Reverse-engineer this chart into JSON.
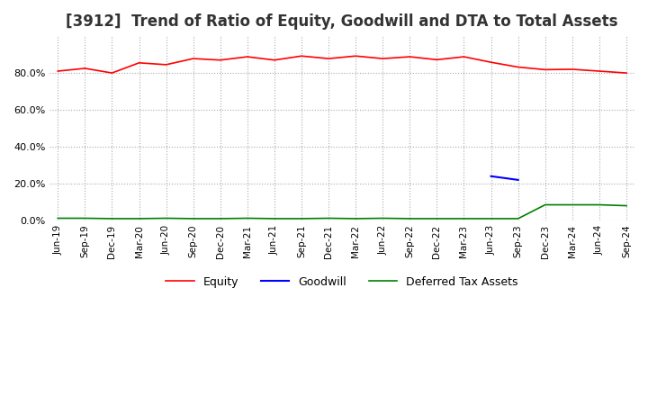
{
  "title": "[3912]  Trend of Ratio of Equity, Goodwill and DTA to Total Assets",
  "x_labels": [
    "Jun-19",
    "Sep-19",
    "Dec-19",
    "Mar-20",
    "Jun-20",
    "Sep-20",
    "Dec-20",
    "Mar-21",
    "Jun-21",
    "Sep-21",
    "Dec-21",
    "Mar-22",
    "Jun-22",
    "Sep-22",
    "Dec-22",
    "Mar-23",
    "Jun-23",
    "Sep-23",
    "Dec-23",
    "Mar-24",
    "Jun-24",
    "Sep-24"
  ],
  "equity": [
    0.81,
    0.825,
    0.8,
    0.855,
    0.845,
    0.878,
    0.87,
    0.888,
    0.87,
    0.892,
    0.878,
    0.892,
    0.878,
    0.888,
    0.872,
    0.888,
    0.858,
    0.832,
    0.818,
    0.82,
    0.81,
    0.8
  ],
  "goodwill": [
    null,
    null,
    null,
    null,
    null,
    null,
    null,
    null,
    null,
    null,
    null,
    null,
    null,
    null,
    null,
    null,
    0.24,
    0.22,
    null,
    null,
    null,
    null
  ],
  "dta": [
    0.012,
    0.012,
    0.01,
    0.01,
    0.012,
    0.01,
    0.01,
    0.012,
    0.01,
    0.01,
    0.012,
    0.01,
    0.012,
    0.01,
    0.01,
    0.01,
    0.01,
    0.01,
    0.085,
    0.085,
    0.085,
    0.08
  ],
  "equity_color": "#ff0000",
  "goodwill_color": "#0000ff",
  "dta_color": "#008000",
  "background_color": "#ffffff",
  "grid_color": "#aaaaaa",
  "ylim": [
    0.0,
    1.0
  ],
  "yticks": [
    0.0,
    0.2,
    0.4,
    0.6,
    0.8
  ],
  "title_fontsize": 12,
  "legend_labels": [
    "Equity",
    "Goodwill",
    "Deferred Tax Assets"
  ]
}
